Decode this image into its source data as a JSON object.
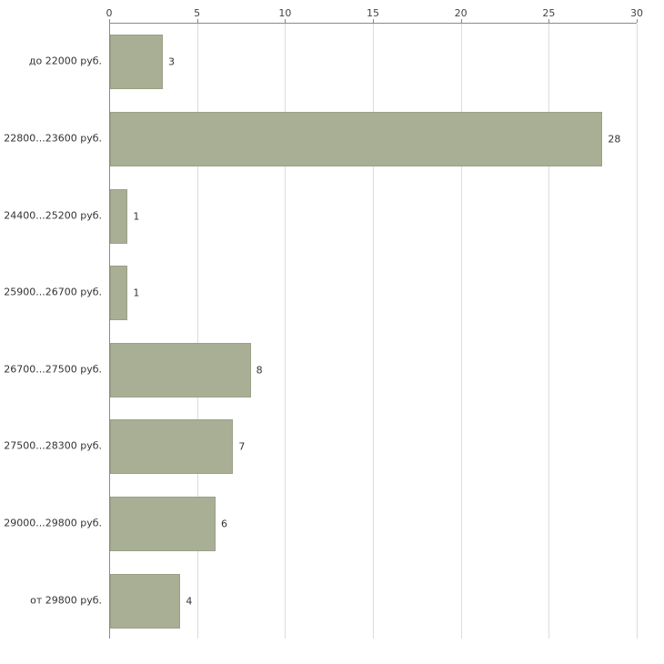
{
  "chart_data": {
    "type": "bar",
    "orientation": "horizontal",
    "title": "",
    "xlabel": "",
    "ylabel": "",
    "categories": [
      "до 22000 руб.",
      "22800...23600 руб.",
      "24400...25200 руб.",
      "25900...26700 руб.",
      "26700...27500 руб.",
      "27500...28300 руб.",
      "29000...29800 руб.",
      "от 29800 руб."
    ],
    "values": [
      3,
      28,
      1,
      1,
      8,
      7,
      6,
      4
    ],
    "value_labels": [
      "3",
      "28",
      "1",
      "1",
      "8",
      "7",
      "6",
      "4"
    ],
    "xlim": [
      0,
      30
    ],
    "xticks": [
      0,
      5,
      10,
      15,
      20,
      25,
      30
    ],
    "grid": true,
    "legend": "none",
    "bar_color": "#a9af94",
    "bar_border_color": "#9aa087",
    "axis_color": "#8a8a8a",
    "grid_color": "#dcdcdc",
    "text_color": "#333333"
  }
}
